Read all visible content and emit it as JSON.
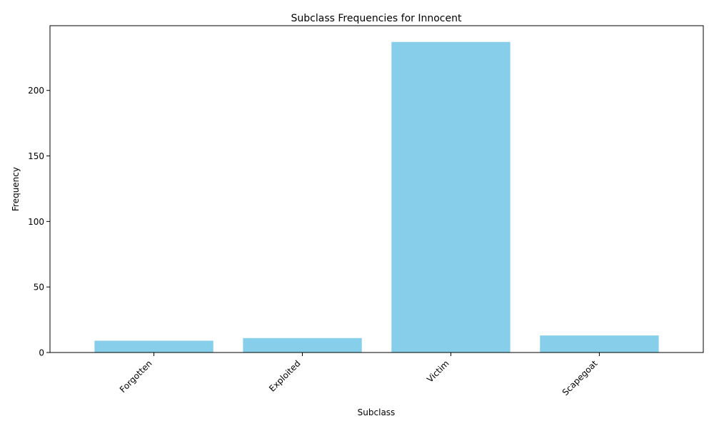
{
  "chart_data": {
    "type": "bar",
    "title": "Subclass Frequencies for Innocent",
    "xlabel": "Subclass",
    "ylabel": "Frequency",
    "categories": [
      "Forgotten",
      "Exploited",
      "Victim",
      "Scapegoat"
    ],
    "values": [
      9,
      11,
      237,
      13
    ],
    "ylim": [
      0,
      249.4
    ],
    "yticks": [
      0,
      50,
      100,
      150,
      200
    ],
    "bar_color": "#87CEEB",
    "grid": false,
    "legend": "none"
  }
}
